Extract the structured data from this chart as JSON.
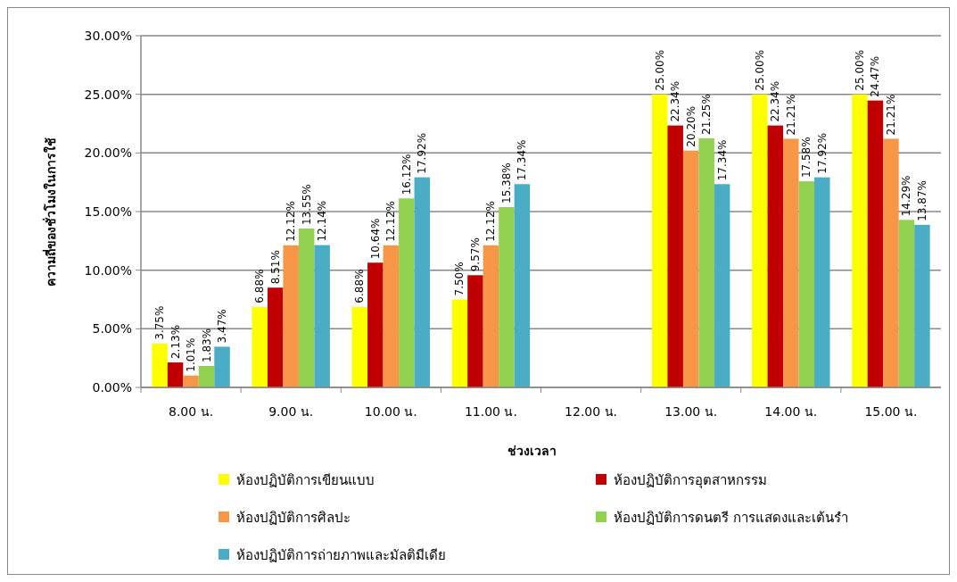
{
  "chart_data": {
    "type": "bar",
    "xlabel": "ช่วงเวลา",
    "ylabel": "ความถี่ของชั่วโมงในการใช้",
    "categories": [
      "8.00 น.",
      "9.00 น.",
      "10.00 น.",
      "11.00 น.",
      "12.00 น.",
      "13.00 น.",
      "14.00 น.",
      "15.00 น."
    ],
    "series": [
      {
        "name": "ห้องปฏิบัติการเขียนแบบ",
        "color": "#ffff00",
        "values": [
          3.75,
          6.88,
          6.88,
          7.5,
          null,
          25,
          25,
          25
        ],
        "value_labels": [
          "3.75%",
          "6.88%",
          "6.88%",
          "7.50%",
          null,
          "25.00%",
          "25.00%",
          "25.00%"
        ]
      },
      {
        "name": "ห้องปฏิบัติการอุตสาหกรรม",
        "color": "#c00000",
        "values": [
          2.13,
          8.51,
          10.64,
          9.57,
          null,
          22.34,
          22.34,
          24.47
        ],
        "value_labels": [
          "2.13%",
          "8.51%",
          "10.64%",
          "9.57%",
          null,
          "22.34%",
          "22.34%",
          "24.47%"
        ]
      },
      {
        "name": "ห้องปฏิบัติการศิลปะ",
        "color": "#f79646",
        "values": [
          1.01,
          12.12,
          12.12,
          12.12,
          null,
          20.2,
          21.21,
          21.21
        ],
        "value_labels": [
          "1.01%",
          "12.12%",
          "12.12%",
          "12.12%",
          null,
          "20.20%",
          "21.21%",
          "21.21%"
        ]
      },
      {
        "name": "ห้องปฏิบัติการดนตรี การแสดงและเต้นรำ",
        "color": "#92d050",
        "values": [
          1.83,
          13.55,
          16.12,
          15.38,
          null,
          21.25,
          17.58,
          14.29
        ],
        "value_labels": [
          "1.83%",
          "13.55%",
          "16.12%",
          "15.38%",
          null,
          "21.25%",
          "17.58%",
          "14.29%"
        ]
      },
      {
        "name": "ห้องปฏิบัติการถ่ายภาพและมัลติมีเดีย",
        "color": "#4bacc6",
        "values": [
          3.47,
          12.14,
          17.92,
          17.34,
          null,
          17.34,
          17.92,
          13.87
        ],
        "value_labels": [
          "3.47%",
          "12.14%",
          "17.92%",
          "17.34%",
          null,
          "17.34%",
          "17.92%",
          "13.87%"
        ]
      }
    ],
    "ylim": [
      0,
      30
    ],
    "yticks": [
      {
        "value": 0,
        "label": "0.00%"
      },
      {
        "value": 5,
        "label": "5.00%"
      },
      {
        "value": 10,
        "label": "10.00%"
      },
      {
        "value": 15,
        "label": "15.00%"
      },
      {
        "value": 20,
        "label": "20.00%"
      },
      {
        "value": 25,
        "label": "25.00%"
      },
      {
        "value": 30,
        "label": "30.00%"
      }
    ],
    "grid": "y",
    "legend": "bottom"
  }
}
